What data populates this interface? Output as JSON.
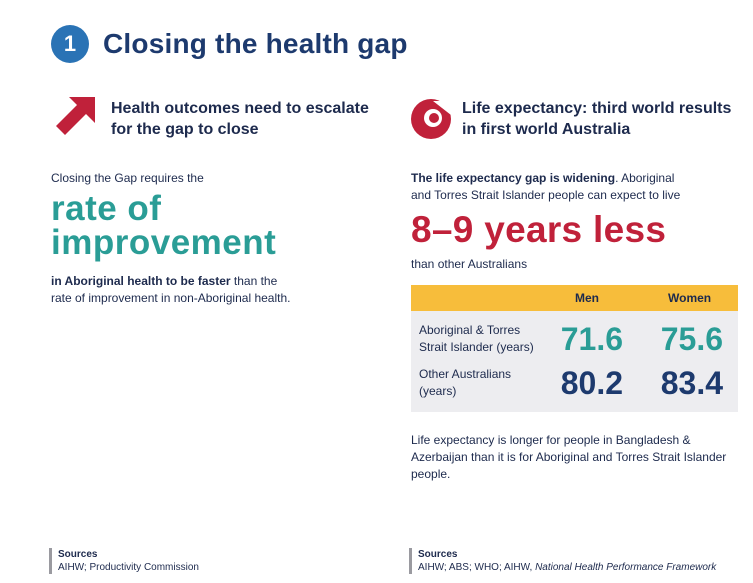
{
  "header": {
    "number": "1",
    "title": "Closing the health gap"
  },
  "left": {
    "heading_line1": "Health outcomes need to escalate",
    "heading_line2": "for the gap to close",
    "intro": "Closing the Gap requires the",
    "big_line1": "rate of",
    "big_line2": "improvement",
    "bold_text": "in Aboriginal health to be faster",
    "rest_text_line1": " than the",
    "rest_text_line2": "rate of improvement in non-Aboriginal health.",
    "sources_label": "Sources",
    "sources_text": "AIHW; Productivity Commission"
  },
  "right": {
    "heading_line1": "Life expectancy: third world results",
    "heading_line2": "in first world Australia",
    "bold_intro": "The life expectancy gap is widening",
    "intro_rest_line1": ". Aboriginal",
    "intro_line2": "and Torres Strait Islander people can expect to live",
    "big": "8–9 years less",
    "after_big": "than other Australians",
    "table": {
      "col_men": "Men",
      "col_women": "Women",
      "row1_line1": "Aboriginal & Torres",
      "row1_line2": "Strait Islander (years)",
      "row1_men": "71.6",
      "row1_women": "75.6",
      "row2_line1": "Other Australians",
      "row2_line2": "(years)",
      "row2_men": "80.2",
      "row2_women": "83.4"
    },
    "note_line1": "Life expectancy is longer for people in Bangladesh &",
    "note_line2": "Azerbaijan than it is for Aboriginal and Torres Strait Islander",
    "note_line3": "people.",
    "sources_label": "Sources",
    "sources_text": "AIHW; ABS; WHO; AIHW, ",
    "sources_italic": "National Health Performance Framework"
  },
  "colors": {
    "teal": "#2a9d96",
    "red": "#c0213a",
    "navy": "#1d3a6e",
    "yellow": "#f7bd3b",
    "blue": "#2a73b5"
  },
  "icons": {
    "left": "up-right-arrow-icon",
    "right": "life-ring-icon"
  }
}
